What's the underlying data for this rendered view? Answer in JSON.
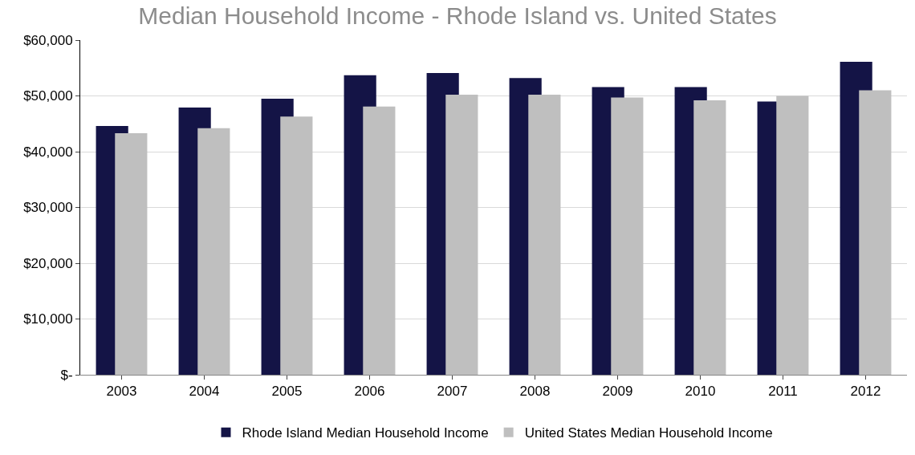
{
  "chart_data": {
    "type": "bar",
    "title": "Median Household Income - Rhode Island vs. United States",
    "categories": [
      "2003",
      "2004",
      "2005",
      "2006",
      "2007",
      "2008",
      "2009",
      "2010",
      "2011",
      "2012"
    ],
    "series": [
      {
        "name": "Rhode Island Median Household Income",
        "color": "#141446",
        "values": [
          44600,
          47900,
          49500,
          53700,
          54100,
          53200,
          51600,
          51600,
          49000,
          56100
        ]
      },
      {
        "name": "United States Median Household Income",
        "color": "#bfbfbf",
        "values": [
          43300,
          44200,
          46300,
          48100,
          50200,
          50200,
          49700,
          49200,
          50000,
          51000
        ]
      }
    ],
    "ylim": [
      0,
      60000
    ],
    "yticks": [
      {
        "value": 0,
        "label": "$-"
      },
      {
        "value": 10000,
        "label": "$10,000"
      },
      {
        "value": 20000,
        "label": "$20,000"
      },
      {
        "value": 30000,
        "label": "$30,000"
      },
      {
        "value": 40000,
        "label": "$40,000"
      },
      {
        "value": 50000,
        "label": "$50,000"
      },
      {
        "value": 60000,
        "label": "$60,000"
      }
    ],
    "grid": "y",
    "legend": "bottom"
  }
}
